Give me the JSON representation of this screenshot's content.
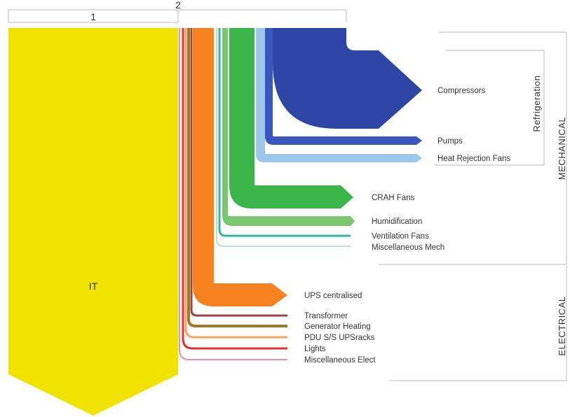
{
  "diagram": {
    "scale": {
      "label_1": "1",
      "label_2": "2"
    },
    "it": {
      "label": "IT",
      "color": "#f2e200"
    },
    "mechanical": {
      "group_label": "MECHANICAL",
      "refrigeration_label": "Refrigeration",
      "flows": [
        {
          "label": "Compressors",
          "color": "#2e47a6"
        },
        {
          "label": "Pumps",
          "color": "#3a57bf"
        },
        {
          "label": "Heat Rejection Fans",
          "color": "#9cc6ea"
        },
        {
          "label": "CRAH Fans",
          "color": "#39b54a"
        },
        {
          "label": "Humidification",
          "color": "#7ac66e"
        },
        {
          "label": "Ventilation Fans",
          "color": "#35b59a"
        },
        {
          "label": "Miscellaneous Mech",
          "color": "#b7e3c4"
        }
      ]
    },
    "electrical": {
      "group_label": "ELECTRICAL",
      "flows": [
        {
          "label": "UPS centralised",
          "color": "#f5821f"
        },
        {
          "label": "Transformer",
          "color": "#a5403a"
        },
        {
          "label": "Generator Heating",
          "color": "#9c7a2a"
        },
        {
          "label": "PDU S/S UPSracks",
          "color": "#f4a460"
        },
        {
          "label": "Lights",
          "color": "#e8302a"
        },
        {
          "label": "Miscellaneous Elect",
          "color": "#f08cb0"
        }
      ]
    }
  }
}
